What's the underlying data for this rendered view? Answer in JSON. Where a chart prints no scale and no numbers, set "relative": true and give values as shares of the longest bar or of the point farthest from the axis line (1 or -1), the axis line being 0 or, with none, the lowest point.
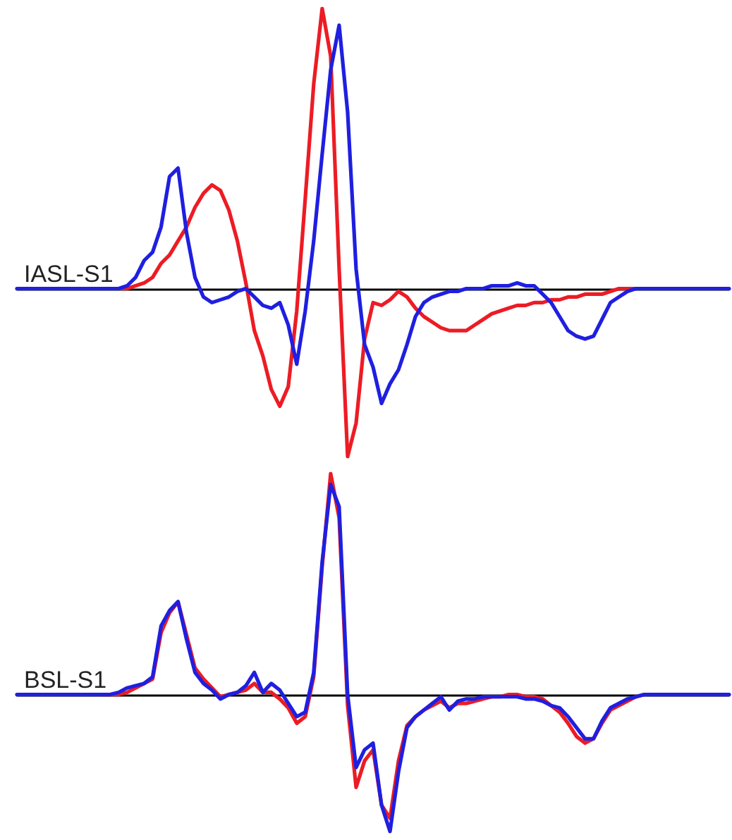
{
  "chart_data": [
    {
      "type": "line",
      "title": "IASL-S1",
      "relative": true,
      "tick_labels": false,
      "marker": "none",
      "categories": [
        null,
        null,
        null,
        null,
        null,
        null,
        null,
        null,
        null,
        null,
        null,
        null,
        null,
        null,
        null,
        null,
        null,
        null,
        null,
        null,
        null,
        null,
        null,
        null,
        null,
        null,
        null,
        null,
        null,
        null,
        null,
        null,
        null,
        null,
        null,
        null,
        null,
        null,
        null,
        null,
        null,
        null,
        null,
        null,
        null,
        null,
        null,
        null,
        null,
        null,
        null,
        null,
        null,
        null,
        null,
        null,
        null,
        null,
        null,
        null,
        null,
        null,
        null,
        null,
        null,
        null,
        null,
        null,
        null,
        null,
        null,
        null,
        null,
        null,
        null,
        null,
        null,
        null,
        null,
        null,
        null,
        null,
        null,
        null,
        null
      ],
      "series": [
        {
          "color": "#ec1c24",
          "values": [
            null,
            null,
            null,
            null,
            null,
            null,
            null,
            null,
            null,
            null,
            null,
            0,
            0,
            0,
            0.01,
            0.02,
            0.04,
            0.09,
            0.12,
            0.17,
            0.22,
            0.29,
            0.34,
            0.37,
            0.35,
            0.28,
            0.17,
            0.02,
            -0.15,
            -0.24,
            -0.36,
            -0.42,
            -0.35,
            -0.08,
            0.32,
            0.73,
            1,
            0.83,
            0.07,
            -0.6,
            -0.48,
            -0.18,
            -0.05,
            -0.06,
            -0.04,
            -0.01,
            -0.03,
            -0.07,
            -0.1,
            -0.12,
            -0.14,
            -0.15,
            -0.15,
            -0.15,
            -0.13,
            -0.11,
            -0.09,
            -0.08,
            -0.07,
            -0.06,
            -0.06,
            -0.05,
            -0.05,
            -0.04,
            -0.04,
            -0.03,
            -0.03,
            -0.02,
            -0.02,
            -0.02,
            -0.01,
            0,
            0,
            0,
            0,
            null,
            null,
            null,
            null,
            null,
            null,
            null,
            null,
            null,
            null
          ]
        },
        {
          "color": "#1f1fe0",
          "values": [
            0,
            0,
            0,
            0,
            0,
            0,
            0,
            0,
            0,
            0,
            0,
            0,
            0,
            0.01,
            0.04,
            0.1,
            0.13,
            0.22,
            0.4,
            0.43,
            0.2,
            0.04,
            -0.03,
            -0.05,
            -0.04,
            -0.03,
            -0.01,
            0,
            -0.03,
            -0.06,
            -0.07,
            -0.05,
            -0.13,
            -0.27,
            -0.08,
            0.17,
            0.48,
            0.78,
            0.94,
            0.63,
            0.07,
            -0.2,
            -0.28,
            -0.41,
            -0.34,
            -0.29,
            -0.2,
            -0.1,
            -0.05,
            -0.03,
            -0.02,
            -0.01,
            -0.01,
            0,
            0,
            0,
            0.01,
            0.01,
            0.01,
            0.02,
            0.01,
            0.01,
            -0.02,
            -0.05,
            -0.1,
            -0.15,
            -0.17,
            -0.18,
            -0.17,
            -0.11,
            -0.05,
            -0.03,
            -0.01,
            0,
            0,
            0,
            0,
            0,
            0,
            0,
            0,
            0,
            0,
            0,
            0
          ]
        }
      ]
    },
    {
      "type": "line",
      "title": "BSL-S1",
      "relative": true,
      "tick_labels": false,
      "marker": "none",
      "categories": [
        null,
        null,
        null,
        null,
        null,
        null,
        null,
        null,
        null,
        null,
        null,
        null,
        null,
        null,
        null,
        null,
        null,
        null,
        null,
        null,
        null,
        null,
        null,
        null,
        null,
        null,
        null,
        null,
        null,
        null,
        null,
        null,
        null,
        null,
        null,
        null,
        null,
        null,
        null,
        null,
        null,
        null,
        null,
        null,
        null,
        null,
        null,
        null,
        null,
        null,
        null,
        null,
        null,
        null,
        null,
        null,
        null,
        null,
        null,
        null,
        null,
        null,
        null,
        null,
        null,
        null,
        null,
        null,
        null,
        null,
        null,
        null,
        null,
        null,
        null,
        null,
        null,
        null,
        null,
        null,
        null,
        null,
        null,
        null,
        null
      ],
      "series": [
        {
          "color": "#ec1c24",
          "values": [
            null,
            null,
            null,
            null,
            null,
            null,
            null,
            null,
            null,
            null,
            0,
            0,
            0,
            0.01,
            0.03,
            0.05,
            0.07,
            0.28,
            0.37,
            0.42,
            0.27,
            0.12,
            0.07,
            0.03,
            -0.01,
            0,
            0.01,
            0.02,
            0.05,
            0.01,
            0.01,
            -0.02,
            -0.06,
            -0.13,
            -0.1,
            0.08,
            0.58,
            1,
            0.8,
            -0.05,
            -0.42,
            -0.3,
            -0.25,
            -0.5,
            -0.56,
            -0.3,
            -0.14,
            -0.1,
            -0.07,
            -0.05,
            -0.03,
            -0.06,
            -0.04,
            -0.04,
            -0.03,
            -0.02,
            -0.01,
            -0.01,
            0,
            0,
            -0.01,
            -0.01,
            -0.02,
            -0.05,
            -0.08,
            -0.13,
            -0.19,
            -0.22,
            -0.2,
            -0.13,
            -0.07,
            -0.05,
            -0.03,
            -0.01,
            0,
            null,
            null,
            null,
            null,
            null,
            null,
            null,
            null,
            null,
            null
          ]
        },
        {
          "color": "#1f1fe0",
          "values": [
            0,
            0,
            0,
            0,
            0,
            0,
            0,
            0,
            0,
            0,
            0,
            0,
            0.01,
            0.03,
            0.04,
            0.05,
            0.08,
            0.31,
            0.38,
            0.42,
            0.25,
            0.1,
            0.05,
            0.02,
            -0.02,
            0,
            0.01,
            0.04,
            0.1,
            0.01,
            0.05,
            0.02,
            -0.04,
            -0.1,
            -0.08,
            0.1,
            0.6,
            0.95,
            0.85,
            0,
            -0.33,
            -0.25,
            -0.22,
            -0.5,
            -0.62,
            -0.35,
            -0.15,
            -0.1,
            -0.07,
            -0.04,
            -0.01,
            -0.07,
            -0.03,
            -0.02,
            -0.02,
            -0.01,
            -0.01,
            -0.01,
            -0.01,
            -0.01,
            -0.02,
            -0.02,
            -0.03,
            -0.05,
            -0.06,
            -0.1,
            -0.15,
            -0.2,
            -0.2,
            -0.12,
            -0.06,
            -0.04,
            -0.02,
            -0.01,
            0,
            0,
            0,
            0,
            0,
            0,
            0,
            0,
            0,
            0,
            0
          ]
        }
      ]
    }
  ]
}
